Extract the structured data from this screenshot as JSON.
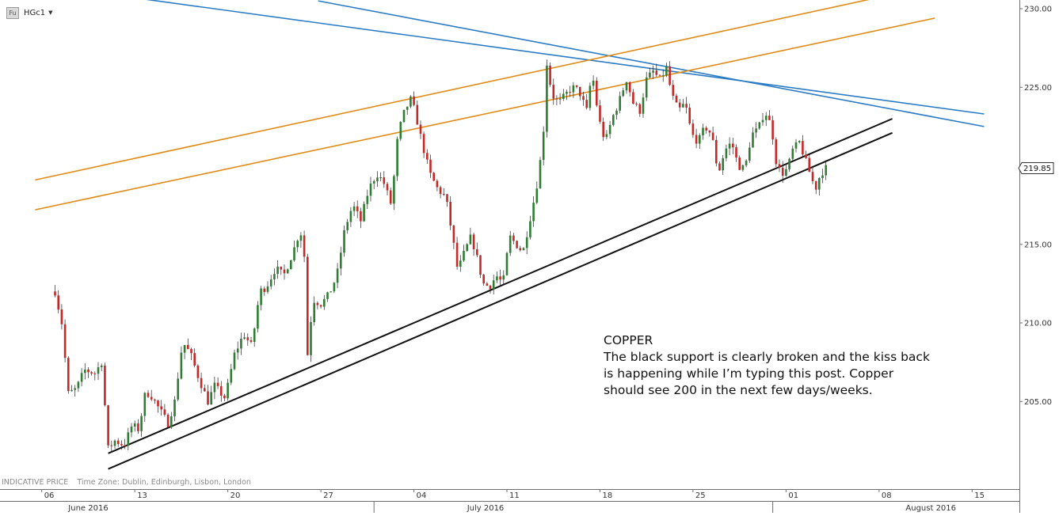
{
  "symbol": {
    "badge": "Fu",
    "name": "HGc1",
    "caret": "▼"
  },
  "info_bar": {
    "price_type": "INDICATIVE PRICE",
    "timezone": "Time Zone: Dublin, Edinburgh, Lisbon, London"
  },
  "annotation": {
    "heading": "COPPER",
    "lines": [
      "The black support is clearly broken and the kiss back",
      "is happening while I’m typing this post. Copper",
      "should see 200 in the next few days/weeks."
    ]
  },
  "colors": {
    "background": "#ffffff",
    "up_candle": "#2e7d32",
    "down_candle": "#c62828",
    "blue_trendline": "#2b7bc4",
    "orange_trendline": "#e08a16",
    "support_line": "#111111",
    "axis": "#6e6e6e"
  },
  "chart_data": {
    "type": "candlestick",
    "instrument": "HGc1",
    "x_axis": {
      "day_ticks": [
        {
          "label": "06",
          "day": -1
        },
        {
          "label": "13",
          "day": 6
        },
        {
          "label": "20",
          "day": 13
        },
        {
          "label": "27",
          "day": 20
        },
        {
          "label": "04",
          "day": 27
        },
        {
          "label": "11",
          "day": 34
        },
        {
          "label": "18",
          "day": 41
        },
        {
          "label": "25",
          "day": 48
        },
        {
          "label": "01",
          "day": 55
        },
        {
          "label": "08",
          "day": 62
        },
        {
          "label": "15",
          "day": 69
        }
      ],
      "month_labels": [
        {
          "label": "June 2016",
          "day": 1
        },
        {
          "label": "July 2016",
          "day": 31
        },
        {
          "label": "August 2016",
          "day": 64
        }
      ],
      "month_separators": [
        24,
        54
      ]
    },
    "y_axis": {
      "ticks": [
        "230.00",
        "225.00",
        "215.00",
        "210.00",
        "205.00"
      ],
      "range": [
        199.7,
        230.3
      ],
      "last_price": "219.85"
    },
    "anchors": [
      {
        "day": 0,
        "price": 212.0
      },
      {
        "day": 0.5,
        "price": 210.0
      },
      {
        "day": 1.0,
        "price": 205.5
      },
      {
        "day": 1.6,
        "price": 205.8
      },
      {
        "day": 2.2,
        "price": 207.0
      },
      {
        "day": 3.0,
        "price": 206.8
      },
      {
        "day": 3.5,
        "price": 207.5
      },
      {
        "day": 4.0,
        "price": 202.0
      },
      {
        "day": 4.5,
        "price": 202.5
      },
      {
        "day": 5.2,
        "price": 202.2
      },
      {
        "day": 5.8,
        "price": 203.5
      },
      {
        "day": 6.3,
        "price": 203.2
      },
      {
        "day": 6.8,
        "price": 205.6
      },
      {
        "day": 7.2,
        "price": 205.4
      },
      {
        "day": 8.0,
        "price": 204.3
      },
      {
        "day": 8.5,
        "price": 203.6
      },
      {
        "day": 9.0,
        "price": 205.0
      },
      {
        "day": 9.6,
        "price": 208.8
      },
      {
        "day": 10.2,
        "price": 208.0
      },
      {
        "day": 10.8,
        "price": 206.5
      },
      {
        "day": 11.5,
        "price": 205.0
      },
      {
        "day": 12.0,
        "price": 206.0
      },
      {
        "day": 12.8,
        "price": 205.2
      },
      {
        "day": 13.5,
        "price": 208.0
      },
      {
        "day": 14.2,
        "price": 209.3
      },
      {
        "day": 14.8,
        "price": 208.5
      },
      {
        "day": 15.4,
        "price": 212.0
      },
      {
        "day": 15.9,
        "price": 212.3
      },
      {
        "day": 16.6,
        "price": 213.5
      },
      {
        "day": 17.2,
        "price": 213.0
      },
      {
        "day": 17.9,
        "price": 214.5
      },
      {
        "day": 18.4,
        "price": 215.8
      },
      {
        "day": 18.7,
        "price": 215.5
      },
      {
        "day": 19.0,
        "price": 208.0
      },
      {
        "day": 19.4,
        "price": 211.5
      },
      {
        "day": 20.0,
        "price": 211.2
      },
      {
        "day": 20.6,
        "price": 211.8
      },
      {
        "day": 21.2,
        "price": 213.0
      },
      {
        "day": 21.8,
        "price": 216.0
      },
      {
        "day": 22.4,
        "price": 217.5
      },
      {
        "day": 23.0,
        "price": 216.5
      },
      {
        "day": 23.6,
        "price": 218.5
      },
      {
        "day": 24.2,
        "price": 219.5
      },
      {
        "day": 24.7,
        "price": 219.0
      },
      {
        "day": 25.3,
        "price": 217.5
      },
      {
        "day": 25.8,
        "price": 222.0
      },
      {
        "day": 26.3,
        "price": 223.5
      },
      {
        "day": 26.8,
        "price": 224.3
      },
      {
        "day": 27.2,
        "price": 223.0
      },
      {
        "day": 27.6,
        "price": 221.5
      },
      {
        "day": 28.2,
        "price": 219.5
      },
      {
        "day": 28.8,
        "price": 218.5
      },
      {
        "day": 29.4,
        "price": 218.0
      },
      {
        "day": 29.9,
        "price": 215.5
      },
      {
        "day": 30.3,
        "price": 213.3
      },
      {
        "day": 30.8,
        "price": 214.5
      },
      {
        "day": 31.3,
        "price": 215.5
      },
      {
        "day": 31.7,
        "price": 214.3
      },
      {
        "day": 32.2,
        "price": 212.5
      },
      {
        "day": 32.7,
        "price": 212.3
      },
      {
        "day": 33.2,
        "price": 213.0
      },
      {
        "day": 33.7,
        "price": 212.5
      },
      {
        "day": 34.2,
        "price": 215.5
      },
      {
        "day": 34.7,
        "price": 215.0
      },
      {
        "day": 35.2,
        "price": 214.5
      },
      {
        "day": 35.7,
        "price": 216.5
      },
      {
        "day": 36.2,
        "price": 218.5
      },
      {
        "day": 36.7,
        "price": 221.5
      },
      {
        "day": 37.0,
        "price": 226.5
      },
      {
        "day": 37.4,
        "price": 224.5
      },
      {
        "day": 37.9,
        "price": 224.0
      },
      {
        "day": 38.4,
        "price": 224.5
      },
      {
        "day": 38.9,
        "price": 225.0
      },
      {
        "day": 39.4,
        "price": 224.8
      },
      {
        "day": 40.0,
        "price": 223.5
      },
      {
        "day": 40.4,
        "price": 226.0
      },
      {
        "day": 40.9,
        "price": 223.0
      },
      {
        "day": 41.4,
        "price": 221.5
      },
      {
        "day": 41.9,
        "price": 223.0
      },
      {
        "day": 42.4,
        "price": 224.0
      },
      {
        "day": 43.0,
        "price": 225.5
      },
      {
        "day": 43.5,
        "price": 224.0
      },
      {
        "day": 44.0,
        "price": 223.5
      },
      {
        "day": 44.5,
        "price": 225.5
      },
      {
        "day": 45.0,
        "price": 226.0
      },
      {
        "day": 45.5,
        "price": 225.5
      },
      {
        "day": 46.0,
        "price": 226.2
      },
      {
        "day": 46.4,
        "price": 224.5
      },
      {
        "day": 46.9,
        "price": 223.5
      },
      {
        "day": 47.4,
        "price": 224.0
      },
      {
        "day": 47.9,
        "price": 222.0
      },
      {
        "day": 48.4,
        "price": 221.5
      },
      {
        "day": 48.9,
        "price": 222.5
      },
      {
        "day": 49.4,
        "price": 222.0
      },
      {
        "day": 49.9,
        "price": 219.5
      },
      {
        "day": 50.4,
        "price": 221.0
      },
      {
        "day": 50.9,
        "price": 221.5
      },
      {
        "day": 51.4,
        "price": 220.0
      },
      {
        "day": 51.9,
        "price": 219.8
      },
      {
        "day": 52.4,
        "price": 222.0
      },
      {
        "day": 52.9,
        "price": 222.3
      },
      {
        "day": 53.4,
        "price": 223.5
      },
      {
        "day": 53.9,
        "price": 222.5
      },
      {
        "day": 54.3,
        "price": 220.0
      },
      {
        "day": 54.7,
        "price": 219.5
      },
      {
        "day": 55.1,
        "price": 219.8
      },
      {
        "day": 55.5,
        "price": 221.0
      },
      {
        "day": 56.0,
        "price": 221.5
      },
      {
        "day": 56.4,
        "price": 220.5
      },
      {
        "day": 56.8,
        "price": 219.5
      },
      {
        "day": 57.2,
        "price": 218.5
      },
      {
        "day": 57.6,
        "price": 219.5
      },
      {
        "day": 58.0,
        "price": 219.85
      }
    ],
    "trendlines": [
      {
        "name": "blue-resistance-upper",
        "color": "blue",
        "start": {
          "day": -1.0,
          "price": 231.5
        },
        "end": {
          "day": 69.9,
          "price": 223.3
        }
      },
      {
        "name": "blue-resistance-lower",
        "color": "blue",
        "start": {
          "day": 19.8,
          "price": 230.5
        },
        "end": {
          "day": 69.9,
          "price": 222.5
        }
      },
      {
        "name": "orange-channel-upper",
        "color": "orange",
        "start": {
          "day": -1.5,
          "price": 219.1
        },
        "end": {
          "day": 63.5,
          "price": 231.0
        }
      },
      {
        "name": "orange-channel-lower",
        "color": "orange",
        "start": {
          "day": -1.5,
          "price": 217.2
        },
        "end": {
          "day": 66.2,
          "price": 229.4
        }
      },
      {
        "name": "black-support-upper",
        "color": "black",
        "start": {
          "day": 4.0,
          "price": 201.7
        },
        "end": {
          "day": 63.0,
          "price": 223.0
        }
      },
      {
        "name": "black-support-lower",
        "color": "black",
        "start": {
          "day": 4.0,
          "price": 200.7
        },
        "end": {
          "day": 63.0,
          "price": 222.1
        }
      }
    ],
    "grid": false,
    "legend": "none"
  }
}
